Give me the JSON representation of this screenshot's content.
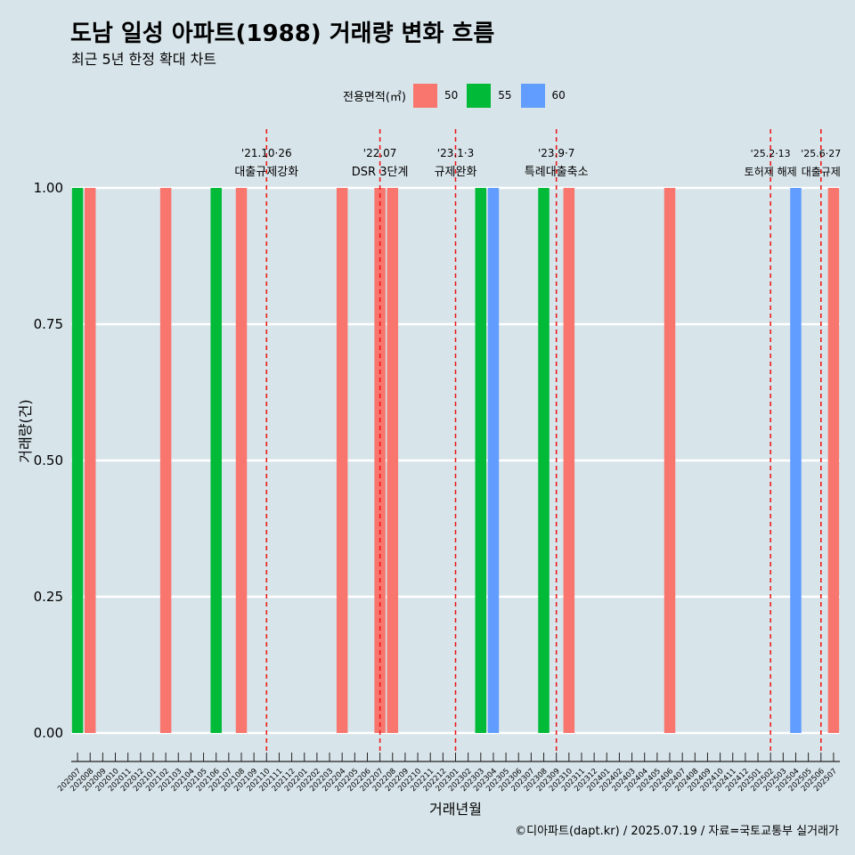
{
  "title": "도남 일성 아파트(1988) 거래량 변화 흐름",
  "subtitle": "최근 5년 한정 확대 차트",
  "legend": {
    "title": "전용면적(㎡)",
    "items": [
      {
        "label": "50",
        "color": "#f8766d"
      },
      {
        "label": "55",
        "color": "#00ba38"
      },
      {
        "label": "60",
        "color": "#619cff"
      }
    ]
  },
  "caption": "©디아파트(dapt.kr) / 2025.07.19 / 자료=국토교통부 실거래가",
  "chart_data": {
    "type": "bar",
    "xlabel": "거래년월",
    "ylabel": "거래량(건)",
    "ylim": [
      0,
      1
    ],
    "yticks": [
      "0.00",
      "0.25",
      "0.50",
      "0.75",
      "1.00"
    ],
    "grid": true,
    "legend_position": "top",
    "categories": [
      "202007",
      "202008",
      "202009",
      "202010",
      "202011",
      "202012",
      "202101",
      "202102",
      "202103",
      "202104",
      "202105",
      "202106",
      "202107",
      "202108",
      "202109",
      "202110",
      "202111",
      "202112",
      "202201",
      "202202",
      "202203",
      "202204",
      "202205",
      "202206",
      "202207",
      "202208",
      "202209",
      "202210",
      "202211",
      "202212",
      "202301",
      "202302",
      "202303",
      "202304",
      "202305",
      "202306",
      "202307",
      "202308",
      "202309",
      "202310",
      "202311",
      "202312",
      "202401",
      "202402",
      "202403",
      "202404",
      "202405",
      "202406",
      "202407",
      "202408",
      "202409",
      "202410",
      "202411",
      "202412",
      "202501",
      "202502",
      "202503",
      "202504",
      "202505",
      "202506",
      "202507"
    ],
    "series": [
      {
        "name": "50",
        "color": "#f8766d",
        "points": [
          {
            "x": "202008",
            "y": 1
          },
          {
            "x": "202102",
            "y": 1
          },
          {
            "x": "202108",
            "y": 1
          },
          {
            "x": "202204",
            "y": 1
          },
          {
            "x": "202207",
            "y": 1
          },
          {
            "x": "202208",
            "y": 1
          },
          {
            "x": "202310",
            "y": 1
          },
          {
            "x": "202406",
            "y": 1
          },
          {
            "x": "202507",
            "y": 1
          }
        ]
      },
      {
        "name": "55",
        "color": "#00ba38",
        "points": [
          {
            "x": "202007",
            "y": 1
          },
          {
            "x": "202106",
            "y": 1
          },
          {
            "x": "202303",
            "y": 1
          },
          {
            "x": "202308",
            "y": 1
          }
        ]
      },
      {
        "name": "60",
        "color": "#619cff",
        "points": [
          {
            "x": "202304",
            "y": 1
          },
          {
            "x": "202504",
            "y": 1
          }
        ]
      }
    ],
    "annotations": [
      {
        "x": "202110",
        "date": "'21.10·26",
        "label": "대출규제강화"
      },
      {
        "x": "202207",
        "date": "'22.07",
        "label": "DSR 3단계"
      },
      {
        "x": "202301",
        "date": "'23.1·3",
        "label": "규제완화"
      },
      {
        "x": "202309",
        "date": "'23.9·7",
        "label": "특례대출축소"
      },
      {
        "x": "202502",
        "date": "'25.2·13",
        "label": "토허제 해제"
      },
      {
        "x": "202506",
        "date": "'25.6·27",
        "label": "대출규제"
      }
    ]
  }
}
